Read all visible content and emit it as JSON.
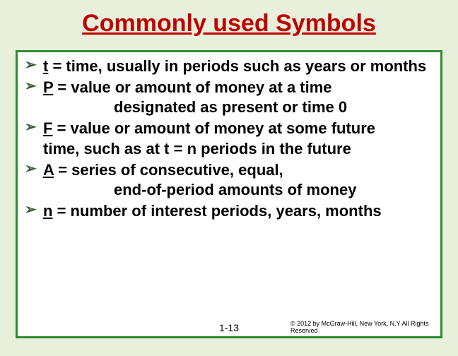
{
  "title": "Commonly used Symbols",
  "bullets": [
    {
      "sym": "t",
      "text": " = time, usually in periods such as years or months"
    },
    {
      "sym": "P",
      "text": " = value or amount of money at a time",
      "cont": "designated as present or time 0",
      "indent": "indent1"
    },
    {
      "sym": "F",
      "text": " = value or amount of money at some future",
      "cont": "time, such as at t = n periods in the future",
      "indent": "indent2",
      "wrap": true
    },
    {
      "sym": "A",
      "text": " = series of consecutive, equal,",
      "cont": "end-of-period amounts of money",
      "indent": "indent1",
      "wrap": true
    },
    {
      "sym": "n",
      "text": " = number of interest periods, years, months"
    }
  ],
  "pageNumber": "1-13",
  "copyright": "© 2012 by McGraw-Hill, New York, N.Y All Rights Reserved",
  "colors": {
    "background": "#e8f0dc",
    "titleColor": "#c00000",
    "boxBorder": "#2e8b2e",
    "boxBg": "#ffffff",
    "bulletArrow": "#3a5f3a"
  }
}
